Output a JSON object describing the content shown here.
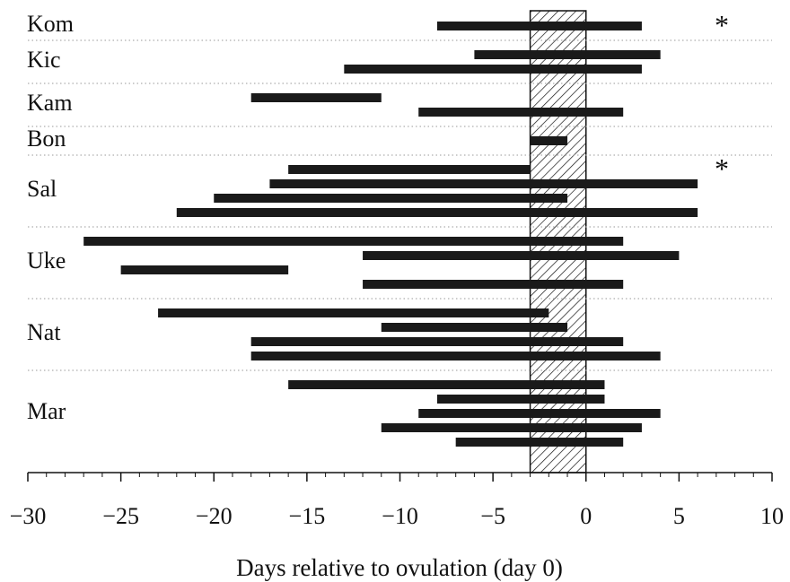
{
  "chart_data": {
    "type": "range-bar",
    "xlabel": "Days relative to ovulation (day 0)",
    "xlim": [
      -30,
      10
    ],
    "xticks": [
      {
        "value": -30,
        "label": "−30"
      },
      {
        "value": -25,
        "label": "−25"
      },
      {
        "value": -20,
        "label": "−20"
      },
      {
        "value": -15,
        "label": "−15"
      },
      {
        "value": -10,
        "label": "−10"
      },
      {
        "value": -5,
        "label": "−5"
      },
      0,
      5,
      10
    ],
    "xminorticks": [
      -29,
      -28,
      -27,
      -26,
      -24,
      -23,
      -22,
      -21,
      -19,
      -18,
      -17,
      -16,
      -14,
      -13,
      -12,
      -11,
      -9,
      -8,
      -7,
      -6,
      -4,
      -3,
      -2,
      -1,
      1,
      2,
      3,
      4,
      6,
      7,
      8,
      9
    ],
    "shaded_range": [
      -3,
      0
    ],
    "color": "#1a1a1a",
    "groups": [
      {
        "name": "Kom",
        "annotation": "*",
        "bars": [
          [
            -8,
            3
          ]
        ]
      },
      {
        "name": "Kic",
        "bars": [
          [
            -6,
            4
          ],
          [
            -13,
            3
          ]
        ]
      },
      {
        "name": "Kam",
        "bars": [
          [
            -18,
            -11
          ],
          [
            -9,
            2
          ]
        ]
      },
      {
        "name": "Bon",
        "bars": [
          [
            -3,
            -1
          ]
        ]
      },
      {
        "name": "Sal",
        "annotation": "*",
        "bars": [
          [
            -16,
            -3
          ],
          [
            -17,
            6
          ],
          [
            -20,
            -1
          ],
          [
            -22,
            6
          ]
        ]
      },
      {
        "name": "Uke",
        "bars": [
          [
            -27,
            2
          ],
          [
            -12,
            5
          ],
          [
            -25,
            -16
          ],
          [
            -12,
            2
          ]
        ]
      },
      {
        "name": "Nat",
        "bars": [
          [
            -23,
            -2
          ],
          [
            -11,
            -1
          ],
          [
            -18,
            2
          ],
          [
            -18,
            4
          ]
        ]
      },
      {
        "name": "Mar",
        "bars": [
          [
            -16,
            1
          ],
          [
            -8,
            1
          ],
          [
            -9,
            4
          ],
          [
            -11,
            3
          ],
          [
            -7,
            2
          ]
        ]
      }
    ]
  }
}
